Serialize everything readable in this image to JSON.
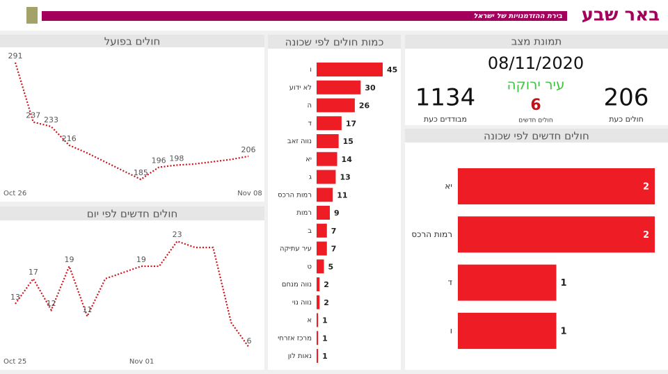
{
  "header": {
    "logo": "באר שבע",
    "tagline": "בירת ההזדמנויות של ישראל"
  },
  "status": {
    "title": "תמונת מצב",
    "date": "08/11/2020",
    "city_status": "עיר ירוקה",
    "new_cases": 6,
    "new_cases_label": "חולים חדשים",
    "active": 206,
    "active_label": "חולים כעת",
    "isolated": 1134,
    "isolated_label": "מבודדים כעת"
  },
  "chart_data": [
    {
      "type": "line",
      "title": "חולים בפועל",
      "categories": [
        "Oct 26",
        null,
        null,
        null,
        null,
        null,
        null,
        null,
        null,
        null,
        null,
        null,
        null,
        "Nov 08"
      ],
      "values": [
        291,
        237,
        233,
        216,
        209,
        201,
        193,
        185,
        196,
        198,
        199,
        201,
        203,
        206
      ],
      "value_labels": [
        "291",
        "237",
        "233",
        "216",
        null,
        null,
        null,
        "185",
        "196",
        "198",
        null,
        null,
        null,
        "206"
      ],
      "color": "#d0101a",
      "ylim": [
        180,
        295
      ]
    },
    {
      "type": "line",
      "title": "חולים חדשים לפי יום",
      "categories": [
        "Oct 25",
        null,
        null,
        null,
        null,
        null,
        null,
        "Nov 01",
        null,
        null,
        null,
        null,
        null,
        null
      ],
      "values": [
        13,
        17,
        12,
        19,
        11,
        17,
        18,
        19,
        19,
        23,
        22,
        22,
        10,
        6
      ],
      "value_labels": [
        "13",
        "17",
        "12",
        "19",
        "11",
        null,
        null,
        "19",
        null,
        "23",
        null,
        null,
        null,
        "6"
      ],
      "color": "#d0101a",
      "ylim": [
        5,
        25
      ]
    },
    {
      "type": "bar",
      "orientation": "horizontal",
      "title": "כמות חולים לפי שכונה",
      "categories": [
        "ו",
        "לא ידוע",
        "ה",
        "ד",
        "נווה זאב",
        "יא",
        "ג",
        "רמות הרכס",
        "רמות",
        "ב",
        "עיר עתיקה",
        "ט",
        "נווה מנחם",
        "נווה נוי",
        "א",
        "מרכז אזרחי",
        "נאות לון"
      ],
      "values": [
        45,
        30,
        26,
        17,
        15,
        14,
        13,
        11,
        9,
        7,
        7,
        5,
        2,
        2,
        1,
        1,
        1
      ],
      "color": "#ee1c24",
      "xlim": [
        0,
        45
      ]
    },
    {
      "type": "bar",
      "orientation": "horizontal",
      "title": "חולים חדשים לפי שכונה",
      "categories": [
        "יא",
        "רמות הרכס",
        "ד",
        "ו"
      ],
      "values": [
        2,
        2,
        1,
        1
      ],
      "color": "#ee1c24",
      "xlim": [
        0,
        2
      ]
    }
  ]
}
